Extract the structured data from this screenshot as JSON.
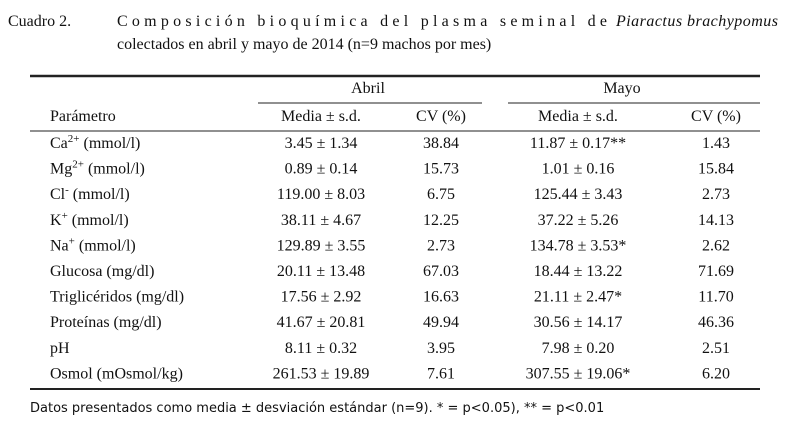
{
  "caption": {
    "label": "Cuadro 2.",
    "text_before": "Composición bioquímica del plasma seminal de",
    "species": "Piaractus brachypomus",
    "text_after": "colectados en abril y mayo de 2014 (n=9 machos por mes)"
  },
  "table": {
    "groups": [
      "Abril",
      "Mayo"
    ],
    "header": [
      "Parámetro",
      "Media ± s.d.",
      "CV (%)",
      "Media ± s.d.",
      "CV (%)"
    ],
    "rows": [
      [
        {
          "base": "Ca",
          "sup": "2+",
          "unit": " (mmol/l)"
        },
        "3.45 ± 1.34",
        "38.84",
        "11.87 ± 0.17**",
        "1.43"
      ],
      [
        {
          "base": "Mg",
          "sup": "2+",
          "unit": " (mmol/l)"
        },
        "0.89 ± 0.14",
        "15.73",
        "1.01 ± 0.16",
        "15.84"
      ],
      [
        {
          "base": "Cl",
          "sup": "-",
          "unit": " (mmol/l)"
        },
        "119.00 ± 8.03",
        "6.75",
        "125.44 ± 3.43",
        "2.73"
      ],
      [
        {
          "base": "K",
          "sup": "+",
          "unit": " (mmol/l)"
        },
        "38.11 ± 4.67",
        "12.25",
        "37.22 ± 5.26",
        "14.13"
      ],
      [
        {
          "base": "Na",
          "sup": "+",
          "unit": " (mmol/l)"
        },
        "129.89 ± 3.55",
        "2.73",
        "134.78 ± 3.53*",
        "2.62"
      ],
      [
        "Glucosa (mg/dl)",
        "20.11 ± 13.48",
        "67.03",
        "18.44 ± 13.22",
        "71.69"
      ],
      [
        "Triglicéridos (mg/dl)",
        "17.56 ± 2.92",
        "16.63",
        "21.11 ± 2.47*",
        "11.70"
      ],
      [
        "Proteínas (mg/dl)",
        "41.67 ± 20.81",
        "49.94",
        "30.56 ± 14.17",
        "46.36"
      ],
      [
        "pH",
        "8.11 ± 0.32",
        "3.95",
        "7.98 ± 0.20",
        "2.51"
      ],
      [
        "Osmol (mOsmol/kg)",
        "261.53 ± 19.89",
        "7.61",
        "307.55 ± 19.06*",
        "6.20"
      ]
    ]
  },
  "footnote": "Datos presentados como media ± desviación estándar (n=9). * = p<0.05), ** = p<0.01"
}
